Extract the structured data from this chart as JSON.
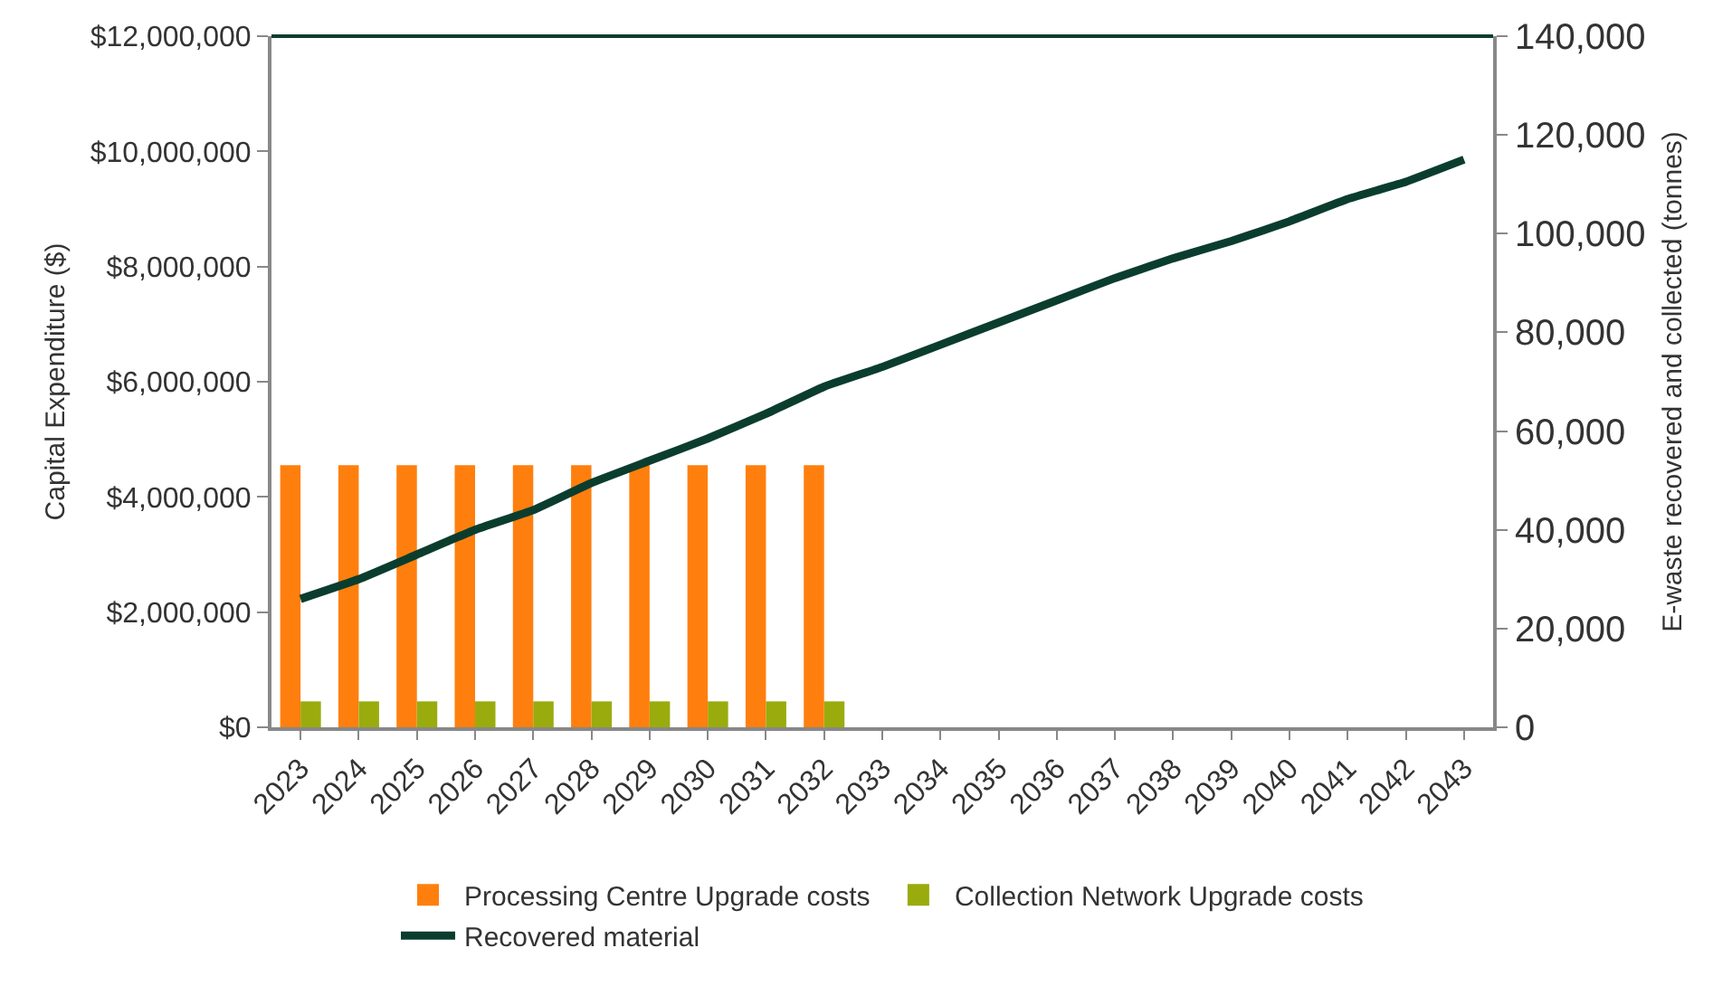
{
  "chart_data": {
    "type": "bar",
    "ylabel": "Capital Expenditure ($)",
    "y2label": "E-waste recovered and collected (tonnes)",
    "categories": [
      "2023",
      "2024",
      "2025",
      "2026",
      "2027",
      "2028",
      "2029",
      "2030",
      "2031",
      "2032",
      "2033",
      "2034",
      "2035",
      "2036",
      "2037",
      "2038",
      "2039",
      "2040",
      "2041",
      "2042",
      "2043"
    ],
    "series": [
      {
        "name": "Processing Centre Upgrade costs",
        "color": "#ff7f0e",
        "values": [
          4550000,
          4550000,
          4550000,
          4550000,
          4550000,
          4550000,
          4550000,
          4550000,
          4550000,
          4550000,
          null,
          null,
          null,
          null,
          null,
          null,
          null,
          null,
          null,
          null,
          null
        ]
      },
      {
        "name": "Collection Network Upgrade costs",
        "color": "#9aab0d",
        "values": [
          450000,
          450000,
          450000,
          450000,
          450000,
          450000,
          450000,
          450000,
          450000,
          450000,
          null,
          null,
          null,
          null,
          null,
          null,
          null,
          null,
          null,
          null,
          null
        ]
      },
      {
        "name": "Recovered material",
        "color": "#0b3d2e",
        "type": "line",
        "axis": "y2",
        "values": [
          26000,
          30000,
          35000,
          40000,
          44000,
          49500,
          54000,
          58500,
          63500,
          69000,
          73000,
          77500,
          82000,
          86500,
          91000,
          95000,
          98500,
          102500,
          107000,
          110500,
          115000
        ]
      }
    ],
    "ylim": [
      0,
      12000000
    ],
    "yticks": [
      {
        "value": 0,
        "label": "$0"
      },
      {
        "value": 2000000,
        "label": "$2,000,000"
      },
      {
        "value": 4000000,
        "label": "$4,000,000"
      },
      {
        "value": 6000000,
        "label": "$6,000,000"
      },
      {
        "value": 8000000,
        "label": "$8,000,000"
      },
      {
        "value": 10000000,
        "label": "$10,000,000"
      },
      {
        "value": 12000000,
        "label": "$12,000,000"
      }
    ],
    "y2lim": [
      0,
      140000
    ],
    "y2ticks": [
      {
        "value": 0,
        "label": "0"
      },
      {
        "value": 20000,
        "label": "20,000"
      },
      {
        "value": 40000,
        "label": "40,000"
      },
      {
        "value": 60000,
        "label": "60,000"
      },
      {
        "value": 80000,
        "label": "80,000"
      },
      {
        "value": 100000,
        "label": "100,000"
      },
      {
        "value": 120000,
        "label": "120,000"
      },
      {
        "value": 140000,
        "label": "140,000"
      }
    ],
    "legend": "bottom",
    "marker": "none",
    "line_style": "solid"
  }
}
